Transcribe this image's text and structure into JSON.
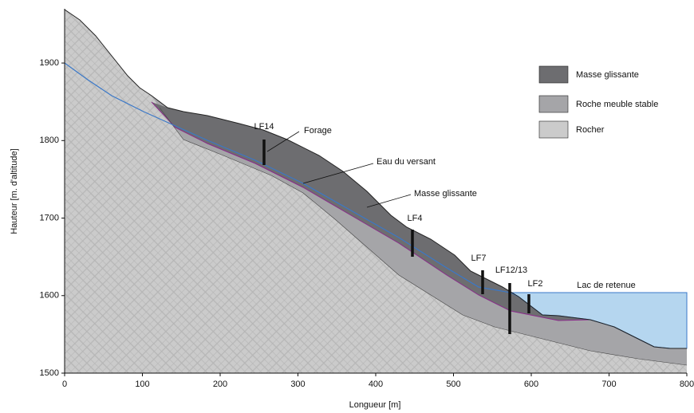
{
  "axes": {
    "xlabel": "Longueur [m]",
    "ylabel": "Hauteur [m. d'altitude]",
    "xlim": [
      0,
      800
    ],
    "xticks": [
      0,
      100,
      200,
      300,
      400,
      500,
      600,
      700,
      800
    ],
    "ylim": [
      1500,
      1970
    ],
    "yticks": [
      1500,
      1600,
      1700,
      1800,
      1900
    ]
  },
  "legend": [
    "Masse glissante",
    "Roche meuble stable",
    "Rocher"
  ],
  "labels": {
    "lf14": "LF14",
    "forage": "Forage",
    "eau": "Eau du versant",
    "masse": "Masse glissante",
    "lf4": "LF4",
    "lf7": "LF7",
    "lf12": "LF12/13",
    "lf2": "LF2",
    "lac": "Lac de retenue"
  }
}
